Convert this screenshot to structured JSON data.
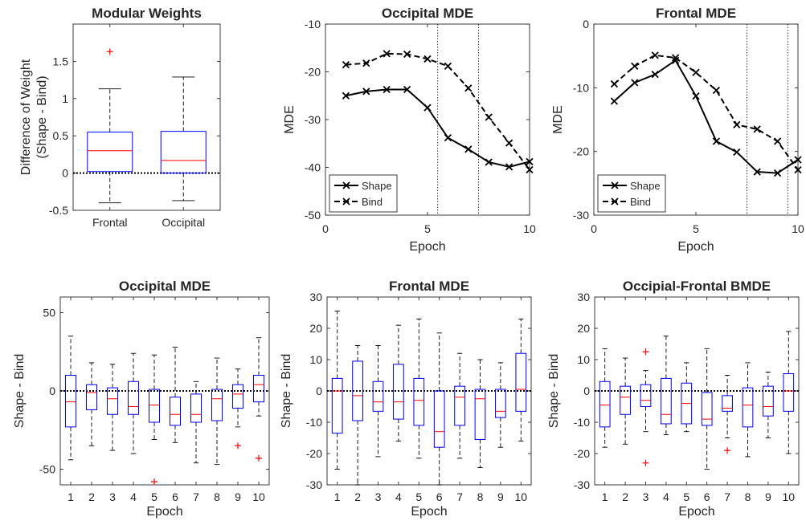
{
  "figure": {
    "colors": {
      "axis": "#262626",
      "box": "#0000ff",
      "median": "#ff0000",
      "outlier": "#ff0000",
      "line": "#000000"
    }
  },
  "chart_data": [
    {
      "id": "p1",
      "type": "box",
      "title": "Modular Weights",
      "xlabel": "",
      "ylabel": [
        "Difference of Weight",
        "(Shape - Bind)"
      ],
      "ylim": [
        -0.5,
        2.0
      ],
      "yticks": [
        -0.5,
        0,
        0.5,
        1,
        1.5
      ],
      "ytick_labels": [
        "-0.5",
        "0",
        "0.5",
        "1",
        "1.5"
      ],
      "categories": [
        "Frontal",
        "Occipital"
      ],
      "boxes": [
        {
          "whislo": -0.4,
          "q1": 0.02,
          "med": 0.3,
          "q3": 0.55,
          "whishi": 1.13,
          "fliers": [
            1.63
          ]
        },
        {
          "whislo": -0.37,
          "q1": 0.0,
          "med": 0.17,
          "q3": 0.56,
          "whishi": 1.29,
          "fliers": []
        }
      ],
      "reference_line": 0
    },
    {
      "id": "p2",
      "type": "line",
      "title": "Occipital MDE",
      "xlabel": "Epoch",
      "ylabel": "MDE",
      "xlim": [
        0,
        10
      ],
      "ylim": [
        -50,
        -10
      ],
      "xticks": [
        0,
        5,
        10
      ],
      "yticks": [
        -50,
        -40,
        -30,
        -20,
        -10
      ],
      "x": [
        1,
        2,
        3,
        4,
        5,
        6,
        7,
        8,
        9,
        10
      ],
      "series": [
        {
          "name": "Shape",
          "style": "solid",
          "values": [
            -25.0,
            -24.1,
            -23.7,
            -23.7,
            -27.5,
            -33.8,
            -36.2,
            -38.9,
            -39.9,
            -38.8
          ]
        },
        {
          "name": "Bind",
          "style": "dashed",
          "values": [
            -18.5,
            -18.2,
            -16.2,
            -16.3,
            -17.3,
            -18.8,
            -23.4,
            -29.5,
            -34.9,
            -40.5
          ]
        }
      ],
      "vlines": [
        5.5,
        7.5
      ],
      "legend": "bottom-left"
    },
    {
      "id": "p3",
      "type": "line",
      "title": "Frontal MDE",
      "xlabel": "Epoch",
      "ylabel": "MDE",
      "xlim": [
        0,
        10
      ],
      "ylim": [
        -30,
        0
      ],
      "xticks": [
        0,
        5,
        10
      ],
      "yticks": [
        -30,
        -20,
        -10,
        0
      ],
      "x": [
        1,
        2,
        3,
        4,
        5,
        6,
        7,
        8,
        9,
        10
      ],
      "series": [
        {
          "name": "Shape",
          "style": "solid",
          "values": [
            -12.1,
            -9.2,
            -7.9,
            -5.7,
            -11.3,
            -18.4,
            -20.1,
            -23.2,
            -23.4,
            -21.3
          ]
        },
        {
          "name": "Bind",
          "style": "dashed",
          "values": [
            -9.4,
            -6.6,
            -4.9,
            -5.3,
            -7.6,
            -10.4,
            -15.8,
            -16.5,
            -18.4,
            -22.9
          ]
        }
      ],
      "vlines": [
        7.5,
        9.5
      ],
      "legend": "bottom-left"
    },
    {
      "id": "p4",
      "type": "box",
      "title": "Occipital MDE",
      "xlabel": "Epoch",
      "ylabel": "Shape - Bind",
      "ylim": [
        -60,
        60
      ],
      "yticks": [
        -50,
        0,
        50
      ],
      "ytick_labels": [
        "-50",
        "0",
        "50"
      ],
      "categories": [
        "1",
        "2",
        "3",
        "4",
        "5",
        "6",
        "7",
        "8",
        "9",
        "10"
      ],
      "boxes": [
        {
          "whislo": -44,
          "q1": -23,
          "med": -7,
          "q3": 10,
          "whishi": 35,
          "fliers": []
        },
        {
          "whislo": -35,
          "q1": -12,
          "med": -1,
          "q3": 4,
          "whishi": 18,
          "fliers": []
        },
        {
          "whislo": -38,
          "q1": -15,
          "med": -5,
          "q3": 2,
          "whishi": 17,
          "fliers": []
        },
        {
          "whislo": -40,
          "q1": -15,
          "med": -10,
          "q3": 6,
          "whishi": 24,
          "fliers": []
        },
        {
          "whislo": -31,
          "q1": -20,
          "med": -9,
          "q3": 1,
          "whishi": 23,
          "fliers": [
            -58
          ]
        },
        {
          "whislo": -33,
          "q1": -22,
          "med": -15,
          "q3": -4,
          "whishi": 28,
          "fliers": []
        },
        {
          "whislo": -46,
          "q1": -20,
          "med": -15,
          "q3": -2,
          "whishi": 6,
          "fliers": []
        },
        {
          "whislo": -47,
          "q1": -19,
          "med": -5,
          "q3": 1,
          "whishi": 21,
          "fliers": []
        },
        {
          "whislo": -23,
          "q1": -11,
          "med": -2,
          "q3": 4,
          "whishi": 14,
          "fliers": [
            -35
          ]
        },
        {
          "whislo": -16,
          "q1": -7,
          "med": 4,
          "q3": 10,
          "whishi": 34,
          "fliers": [
            -43
          ]
        }
      ],
      "reference_line": 0
    },
    {
      "id": "p5",
      "type": "box",
      "title": "Frontal MDE",
      "xlabel": "Epoch",
      "ylabel": "Shape - Bind",
      "ylim": [
        -30,
        30
      ],
      "yticks": [
        -30,
        -20,
        -10,
        0,
        10,
        20,
        30
      ],
      "ytick_labels": [
        "-30",
        "-20",
        "-10",
        "0",
        "10",
        "20",
        "30"
      ],
      "categories": [
        "1",
        "2",
        "3",
        "4",
        "5",
        "6",
        "7",
        "8",
        "9",
        "10"
      ],
      "boxes": [
        {
          "whislo": -25,
          "q1": -13.5,
          "med": 0,
          "q3": 4,
          "whishi": 25.5,
          "fliers": []
        },
        {
          "whislo": -30,
          "q1": -9.5,
          "med": -1.5,
          "q3": 9.5,
          "whishi": 14.5,
          "fliers": []
        },
        {
          "whislo": -21,
          "q1": -6.5,
          "med": -3.5,
          "q3": 3,
          "whishi": 14.5,
          "fliers": []
        },
        {
          "whislo": -16,
          "q1": -9,
          "med": -3.5,
          "q3": 8.5,
          "whishi": 21,
          "fliers": []
        },
        {
          "whislo": -21.5,
          "q1": -11,
          "med": -3,
          "q3": 4,
          "whishi": 23,
          "fliers": []
        },
        {
          "whislo": -30,
          "q1": -18,
          "med": -13,
          "q3": 0,
          "whishi": 18.5,
          "fliers": []
        },
        {
          "whislo": -21.5,
          "q1": -11,
          "med": -2,
          "q3": 1.5,
          "whishi": 12,
          "fliers": []
        },
        {
          "whislo": -24.5,
          "q1": -15.5,
          "med": -2.5,
          "q3": 0.5,
          "whishi": 10,
          "fliers": []
        },
        {
          "whislo": -18,
          "q1": -8.5,
          "med": -6.5,
          "q3": 0.5,
          "whishi": 9,
          "fliers": []
        },
        {
          "whislo": -16,
          "q1": -6.5,
          "med": 0.5,
          "q3": 12,
          "whishi": 23,
          "fliers": []
        }
      ],
      "reference_line": 0
    },
    {
      "id": "p6",
      "type": "box",
      "title": "Occipial-Frontal BMDE",
      "xlabel": "Epoch",
      "ylabel": "Shape - Bind",
      "ylim": [
        -30,
        30
      ],
      "yticks": [
        -30,
        -20,
        -10,
        0,
        10,
        20,
        30
      ],
      "ytick_labels": [
        "-30",
        "-20",
        "-10",
        "0",
        "10",
        "20",
        "30"
      ],
      "categories": [
        "1",
        "2",
        "3",
        "4",
        "5",
        "6",
        "7",
        "8",
        "9",
        "10"
      ],
      "boxes": [
        {
          "whislo": -18,
          "q1": -11.5,
          "med": -4.5,
          "q3": 3,
          "whishi": 13.5,
          "fliers": []
        },
        {
          "whislo": -17,
          "q1": -7.5,
          "med": -2,
          "q3": 1.5,
          "whishi": 10.5,
          "fliers": []
        },
        {
          "whislo": -13,
          "q1": -5,
          "med": -3,
          "q3": 2,
          "whishi": 6.5,
          "fliers": [
            12.5,
            -23
          ]
        },
        {
          "whislo": -14,
          "q1": -10.5,
          "med": -7.5,
          "q3": 4,
          "whishi": 17.5,
          "fliers": []
        },
        {
          "whislo": -13,
          "q1": -10.5,
          "med": -4,
          "q3": 2.5,
          "whishi": 9,
          "fliers": []
        },
        {
          "whislo": -25,
          "q1": -11,
          "med": -9,
          "q3": -0.5,
          "whishi": 13.5,
          "fliers": []
        },
        {
          "whislo": -15,
          "q1": -6.5,
          "med": -5.5,
          "q3": -1.5,
          "whishi": 5,
          "fliers": [
            -19
          ]
        },
        {
          "whislo": -21,
          "q1": -11.5,
          "med": -4.5,
          "q3": 1,
          "whishi": 9,
          "fliers": []
        },
        {
          "whislo": -15,
          "q1": -8,
          "med": -5,
          "q3": 1.5,
          "whishi": 6,
          "fliers": []
        },
        {
          "whislo": -20,
          "q1": -6.5,
          "med": 0,
          "q3": 5.5,
          "whishi": 19,
          "fliers": []
        }
      ],
      "reference_line": 0
    }
  ]
}
